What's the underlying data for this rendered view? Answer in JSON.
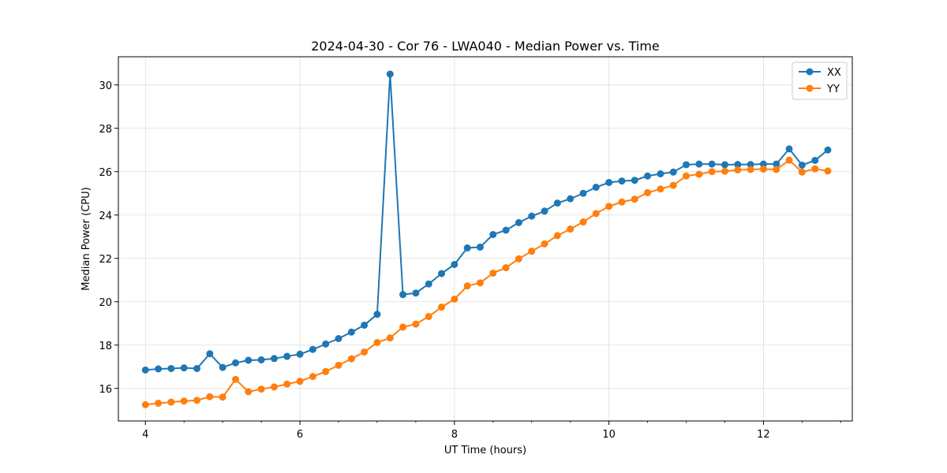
{
  "chart_data": {
    "type": "line",
    "title": "2024-04-30 - Cor 76 - LWA040 - Median Power vs. Time",
    "xlabel": "UT Time (hours)",
    "ylabel": "Median Power (CPU)",
    "xlim": [
      3.65,
      13.15
    ],
    "ylim": [
      14.5,
      31.3
    ],
    "xticks": [
      4,
      6,
      8,
      10,
      12
    ],
    "xtick_labels": [
      "4",
      "6",
      "8",
      "10",
      "12"
    ],
    "yticks": [
      16,
      18,
      20,
      22,
      24,
      26,
      28,
      30
    ],
    "ytick_labels": [
      "16",
      "18",
      "20",
      "22",
      "24",
      "26",
      "28",
      "30"
    ],
    "grid": true,
    "legend_position": "top-right",
    "x": [
      4.0,
      4.167,
      4.333,
      4.5,
      4.667,
      4.833,
      5.0,
      5.167,
      5.333,
      5.5,
      5.667,
      5.833,
      6.0,
      6.167,
      6.333,
      6.5,
      6.667,
      6.833,
      7.0,
      7.167,
      7.333,
      7.5,
      7.667,
      7.833,
      8.0,
      8.167,
      8.333,
      8.5,
      8.667,
      8.833,
      9.0,
      9.167,
      9.333,
      9.5,
      9.667,
      9.833,
      10.0,
      10.167,
      10.333,
      10.5,
      10.667,
      10.833,
      11.0,
      11.167,
      11.333,
      11.5,
      11.667,
      11.833,
      12.0,
      12.167,
      12.333,
      12.5,
      12.667,
      12.833
    ],
    "series": [
      {
        "name": "XX",
        "color": "#1f77b4",
        "values": [
          16.85,
          16.9,
          16.92,
          16.95,
          16.92,
          17.6,
          16.97,
          17.18,
          17.3,
          17.32,
          17.38,
          17.48,
          17.58,
          17.8,
          18.05,
          18.3,
          18.6,
          18.92,
          19.42,
          30.5,
          20.33,
          20.4,
          20.82,
          21.3,
          21.72,
          22.48,
          22.52,
          23.1,
          23.3,
          23.65,
          23.95,
          24.18,
          24.55,
          24.75,
          25.0,
          25.28,
          25.5,
          25.57,
          25.6,
          25.8,
          25.9,
          25.98,
          26.32,
          26.35,
          26.35,
          26.32,
          26.33,
          26.33,
          26.35,
          26.35,
          27.05,
          26.3,
          26.52,
          27.0
        ]
      },
      {
        "name": "YY",
        "color": "#ff7f0e",
        "values": [
          15.25,
          15.32,
          15.37,
          15.42,
          15.45,
          15.62,
          15.6,
          16.42,
          15.85,
          15.97,
          16.07,
          16.2,
          16.33,
          16.55,
          16.78,
          17.07,
          17.37,
          17.68,
          18.12,
          18.33,
          18.83,
          18.97,
          19.32,
          19.75,
          20.12,
          20.73,
          20.87,
          21.32,
          21.57,
          21.98,
          22.33,
          22.67,
          23.05,
          23.35,
          23.68,
          24.07,
          24.4,
          24.6,
          24.73,
          25.03,
          25.2,
          25.37,
          25.8,
          25.88,
          26.0,
          26.02,
          26.08,
          26.1,
          26.12,
          26.1,
          26.53,
          25.98,
          26.13,
          26.03
        ]
      }
    ]
  }
}
